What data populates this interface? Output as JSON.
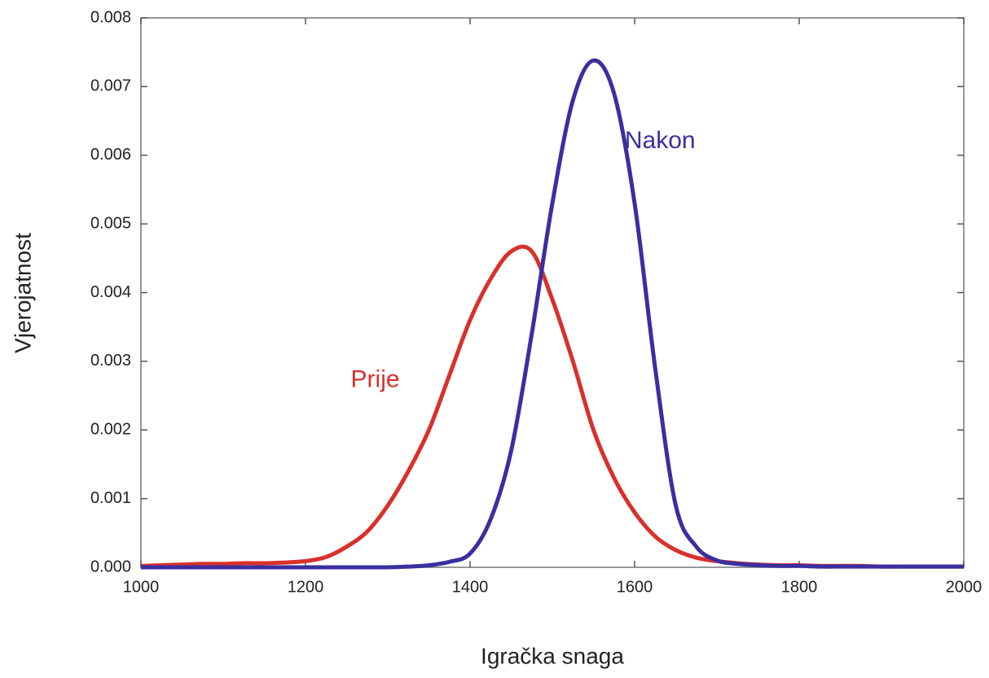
{
  "chart_data": {
    "type": "line",
    "xlabel": "Igračka snaga",
    "ylabel": "Vjerojatnost",
    "x": [
      1000,
      1025,
      1050,
      1075,
      1100,
      1125,
      1150,
      1175,
      1200,
      1225,
      1250,
      1275,
      1300,
      1325,
      1350,
      1375,
      1400,
      1425,
      1450,
      1475,
      1500,
      1525,
      1550,
      1575,
      1600,
      1625,
      1650,
      1675,
      1700,
      1725,
      1750,
      1775,
      1800,
      1825,
      1850,
      1875,
      1900,
      1925,
      1950,
      1975,
      2000
    ],
    "series": [
      {
        "name": "Prije",
        "color": "#d9302b",
        "values": [
          2e-05,
          3e-05,
          4e-05,
          5e-05,
          5e-05,
          6e-05,
          6e-05,
          7e-05,
          9e-05,
          0.00015,
          0.0003,
          0.00052,
          0.0009,
          0.0014,
          0.002,
          0.0028,
          0.0036,
          0.0042,
          0.0046,
          0.0046,
          0.0039,
          0.003,
          0.002,
          0.0013,
          0.0008,
          0.00045,
          0.00025,
          0.00014,
          9e-05,
          6e-05,
          4e-05,
          3e-05,
          3e-05,
          2e-05,
          2e-05,
          2e-05,
          1e-05,
          1e-05,
          1e-05,
          1e-05,
          1e-05
        ]
      },
      {
        "name": "Nakon",
        "color": "#3a2fa0",
        "values": [
          0,
          0,
          0,
          0,
          0,
          0,
          0,
          0,
          0,
          0,
          0,
          0,
          0,
          1e-05,
          3e-05,
          8e-05,
          0.0002,
          0.0007,
          0.0017,
          0.0034,
          0.0053,
          0.0068,
          0.00738,
          0.0069,
          0.0053,
          0.0029,
          0.0009,
          0.0003,
          0.0001,
          5e-05,
          3e-05,
          2e-05,
          2e-05,
          1e-05,
          1e-05,
          1e-05,
          1e-05,
          1e-05,
          1e-05,
          1e-05,
          1e-05
        ]
      }
    ],
    "xlim": [
      1000,
      2000
    ],
    "xticks": [
      1000,
      1200,
      1400,
      1600,
      1800,
      2000
    ],
    "ylim": [
      0,
      0.008
    ],
    "yticks": [
      {
        "value": 0,
        "label": "0.000"
      },
      0.001,
      0.002,
      0.003,
      0.004,
      0.005,
      0.006,
      0.007,
      0.008
    ]
  }
}
